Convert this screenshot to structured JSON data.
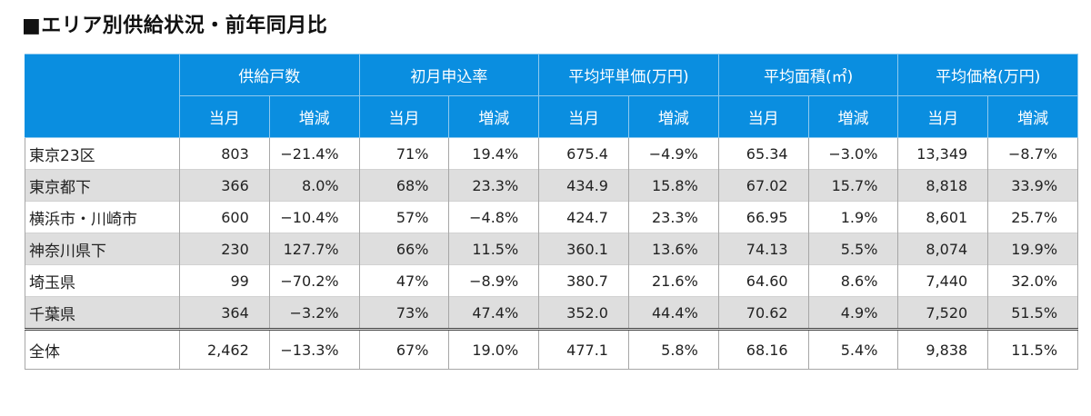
{
  "title": "■エリア別供給状況・前年同月比",
  "headers": {
    "groups": [
      "供給戸数",
      "初月申込率",
      "平均坪単価(万円)",
      "平均面積(㎡)",
      "平均価格(万円)"
    ],
    "sub": [
      "当月",
      "増減"
    ]
  },
  "rows": [
    {
      "area": "東京23区",
      "values": [
        "803",
        "−21.4%",
        "71%",
        "19.4%",
        "675.4",
        "−4.9%",
        "65.34",
        "−3.0%",
        "13,349",
        "−8.7%"
      ]
    },
    {
      "area": "東京都下",
      "values": [
        "366",
        "8.0%",
        "68%",
        "23.3%",
        "434.9",
        "15.8%",
        "67.02",
        "15.7%",
        "8,818",
        "33.9%"
      ]
    },
    {
      "area": "横浜市・川崎市",
      "values": [
        "600",
        "−10.4%",
        "57%",
        "−4.8%",
        "424.7",
        "23.3%",
        "66.95",
        "1.9%",
        "8,601",
        "25.7%"
      ]
    },
    {
      "area": "神奈川県下",
      "values": [
        "230",
        "127.7%",
        "66%",
        "11.5%",
        "360.1",
        "13.6%",
        "74.13",
        "5.5%",
        "8,074",
        "19.9%"
      ]
    },
    {
      "area": "埼玉県",
      "values": [
        "99",
        "−70.2%",
        "47%",
        "−8.9%",
        "380.7",
        "21.6%",
        "64.60",
        "8.6%",
        "7,440",
        "32.0%"
      ]
    },
    {
      "area": "千葉県",
      "values": [
        "364",
        "−3.2%",
        "73%",
        "47.4%",
        "352.0",
        "44.4%",
        "70.62",
        "4.9%",
        "7,520",
        "51.5%"
      ]
    }
  ],
  "total": {
    "area": "全体",
    "values": [
      "2,462",
      "−13.3%",
      "67%",
      "19.0%",
      "477.1",
      "5.8%",
      "68.16",
      "5.4%",
      "9,838",
      "11.5%"
    ]
  },
  "colors": {
    "header_bg": "#0a8ee0",
    "row_stripe": "#dedede"
  }
}
